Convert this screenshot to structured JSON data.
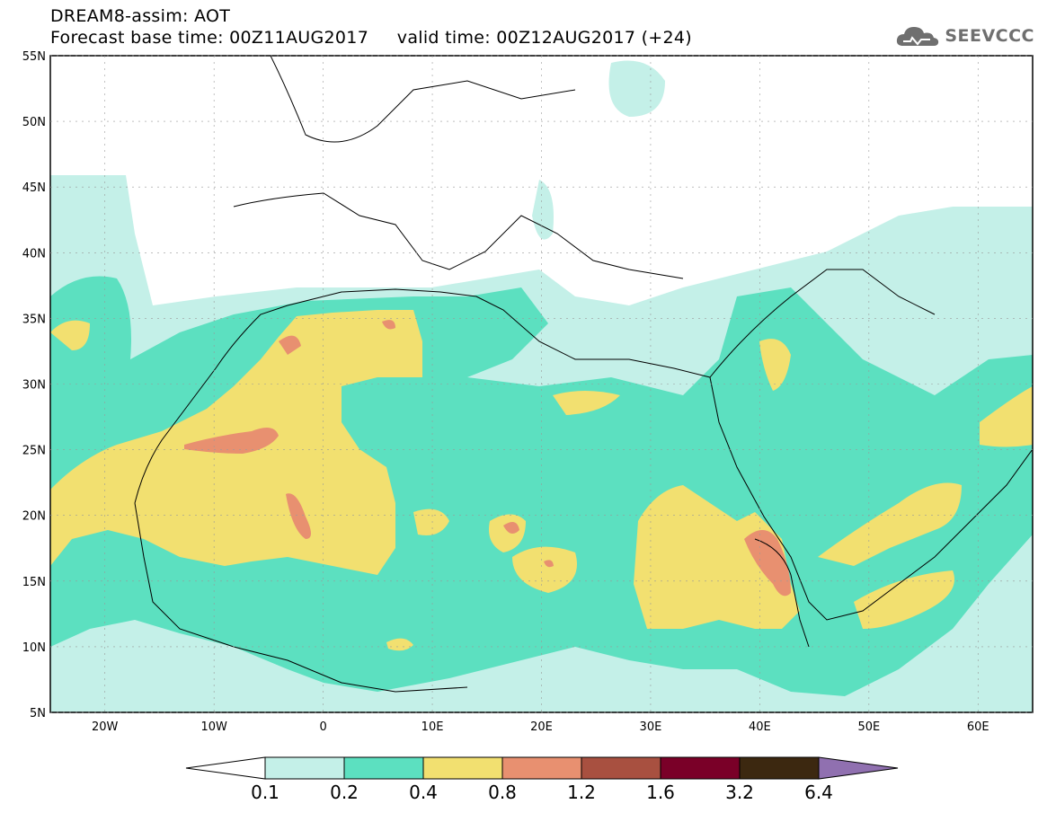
{
  "header": {
    "title_line1": "DREAM8-assim: AOT",
    "title_line2": "Forecast base time: 00Z11AUG2017     valid time: 00Z12AUG2017 (+24)",
    "logo_text": "SEEVCCC"
  },
  "map": {
    "lat_labels": [
      "55N",
      "50N",
      "45N",
      "40N",
      "35N",
      "30N",
      "25N",
      "20N",
      "15N",
      "10N",
      "5N"
    ],
    "lon_labels": [
      "20W",
      "10W",
      "0",
      "10E",
      "20E",
      "30E",
      "40E",
      "50E",
      "60E"
    ],
    "lon_range": [
      -25,
      65
    ],
    "lat_range": [
      5,
      55
    ]
  },
  "colorbar": {
    "labels": [
      "0.1",
      "0.2",
      "0.4",
      "0.8",
      "1.2",
      "1.6",
      "3.2",
      "6.4"
    ],
    "colors": [
      "#c4f0e8",
      "#5ce0c0",
      "#f2e070",
      "#e89070",
      "#a85040",
      "#7a0028",
      "#3c2810",
      "#9070b0"
    ]
  }
}
